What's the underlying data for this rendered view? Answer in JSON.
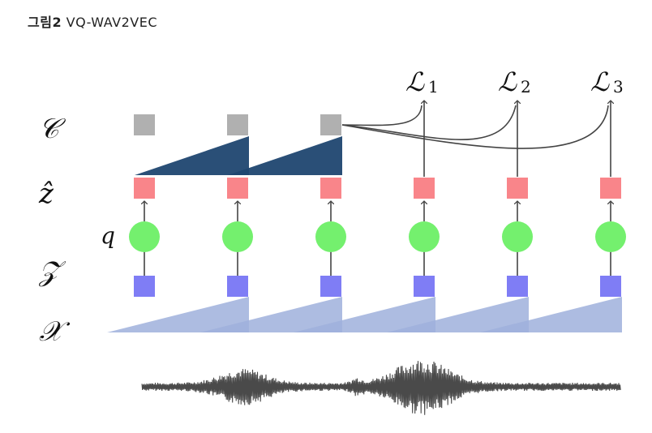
{
  "caption": {
    "prefix": "그림2",
    "title": "VQ-WAV2VEC"
  },
  "rows": {
    "context": "𝒞",
    "quantized": "ẑ",
    "quantizer": "q",
    "latent": "𝒵",
    "input": "𝒳"
  },
  "losses": [
    {
      "base": "ℒ",
      "sub": "1"
    },
    {
      "base": "ℒ",
      "sub": "2"
    },
    {
      "base": "ℒ",
      "sub": "3"
    }
  ],
  "colors": {
    "context_box": "#b0b0b0",
    "context_field": "#1f4670",
    "quantized_box": "#f9858a",
    "quantizer_node": "#74f06e",
    "latent_box": "#7f7df5",
    "encoder_field": "#9fb0dc",
    "waveform": "#4a4a4a",
    "lines": "#444444"
  }
}
